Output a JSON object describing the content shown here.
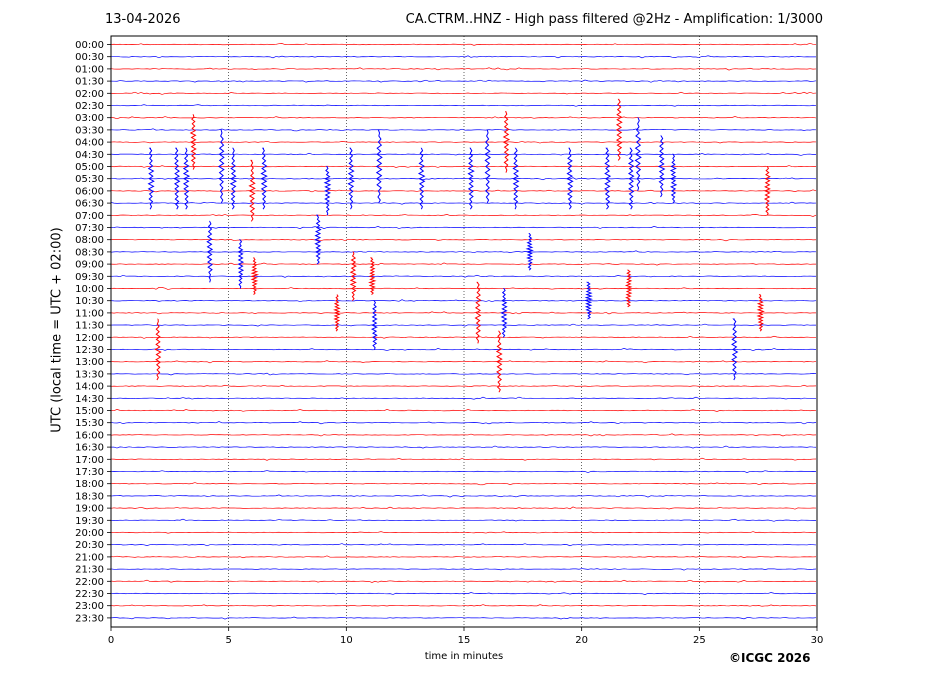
{
  "header": {
    "date": "13-04-2026",
    "title": "CA.CTRM..HNZ - High pass filtered @2Hz - Amplification: 1/3000"
  },
  "footer": {
    "copyright": "©ICGC 2026"
  },
  "chart_data": {
    "type": "line",
    "title": "CA.CTRM..HNZ - High pass filtered @2Hz - Amplification: 1/3000",
    "xlabel": "time in minutes",
    "ylabel": "UTC (local time = UTC + 02:00)",
    "xlim": [
      0,
      30
    ],
    "x_ticks": [
      0,
      5,
      10,
      15,
      20,
      25,
      30
    ],
    "grid": "vertical dotted at every 5 minutes",
    "trace_colors": [
      "#ff0000",
      "#0000ff"
    ],
    "rows": [
      "00:00",
      "00:30",
      "01:00",
      "01:30",
      "02:00",
      "02:30",
      "03:00",
      "03:30",
      "04:00",
      "04:30",
      "05:00",
      "05:30",
      "06:00",
      "06:30",
      "07:00",
      "07:30",
      "08:00",
      "08:30",
      "09:00",
      "09:30",
      "10:00",
      "10:30",
      "11:00",
      "11:30",
      "12:00",
      "12:30",
      "13:00",
      "13:30",
      "14:00",
      "14:30",
      "15:00",
      "15:30",
      "16:00",
      "16:30",
      "17:00",
      "17:30",
      "18:00",
      "18:30",
      "19:00",
      "19:30",
      "20:00",
      "20:30",
      "21:00",
      "21:30",
      "22:00",
      "22:30",
      "23:00",
      "23:30"
    ],
    "events": [
      {
        "row": "04:00",
        "minute": 3.5,
        "color": "red",
        "amplitude": 4.5
      },
      {
        "row": "05:00",
        "minute": 4.7,
        "color": "blue",
        "amplitude": 6
      },
      {
        "row": "05:30",
        "minute": 1.7,
        "color": "blue",
        "amplitude": 5
      },
      {
        "row": "05:30",
        "minute": 2.8,
        "color": "blue",
        "amplitude": 5
      },
      {
        "row": "05:30",
        "minute": 3.2,
        "color": "blue",
        "amplitude": 5
      },
      {
        "row": "05:30",
        "minute": 5.2,
        "color": "blue",
        "amplitude": 5
      },
      {
        "row": "05:30",
        "minute": 6.5,
        "color": "blue",
        "amplitude": 5
      },
      {
        "row": "06:00",
        "minute": 6.0,
        "color": "red",
        "amplitude": 5
      },
      {
        "row": "06:00",
        "minute": 9.2,
        "color": "blue",
        "amplitude": 4
      },
      {
        "row": "05:30",
        "minute": 10.2,
        "color": "blue",
        "amplitude": 5
      },
      {
        "row": "05:00",
        "minute": 11.4,
        "color": "blue",
        "amplitude": 6
      },
      {
        "row": "05:30",
        "minute": 13.2,
        "color": "blue",
        "amplitude": 5
      },
      {
        "row": "05:30",
        "minute": 15.3,
        "color": "blue",
        "amplitude": 5
      },
      {
        "row": "05:00",
        "minute": 16.0,
        "color": "blue",
        "amplitude": 6
      },
      {
        "row": "04:00",
        "minute": 16.8,
        "color": "red",
        "amplitude": 5
      },
      {
        "row": "05:30",
        "minute": 17.2,
        "color": "blue",
        "amplitude": 5
      },
      {
        "row": "05:30",
        "minute": 19.5,
        "color": "blue",
        "amplitude": 5
      },
      {
        "row": "05:30",
        "minute": 21.1,
        "color": "blue",
        "amplitude": 5
      },
      {
        "row": "03:30",
        "minute": 21.6,
        "color": "red",
        "amplitude": 5
      },
      {
        "row": "05:30",
        "minute": 22.1,
        "color": "blue",
        "amplitude": 5
      },
      {
        "row": "04:30",
        "minute": 22.4,
        "color": "blue",
        "amplitude": 6
      },
      {
        "row": "05:00",
        "minute": 23.4,
        "color": "blue",
        "amplitude": 5
      },
      {
        "row": "05:30",
        "minute": 23.9,
        "color": "blue",
        "amplitude": 4
      },
      {
        "row": "06:00",
        "minute": 27.9,
        "color": "red",
        "amplitude": 4
      },
      {
        "row": "08:30",
        "minute": 4.2,
        "color": "blue",
        "amplitude": 5
      },
      {
        "row": "09:00",
        "minute": 5.5,
        "color": "blue",
        "amplitude": 4
      },
      {
        "row": "09:30",
        "minute": 6.1,
        "color": "red",
        "amplitude": 3
      },
      {
        "row": "08:00",
        "minute": 8.8,
        "color": "blue",
        "amplitude": 4
      },
      {
        "row": "09:30",
        "minute": 10.3,
        "color": "red",
        "amplitude": 4
      },
      {
        "row": "09:30",
        "minute": 11.1,
        "color": "red",
        "amplitude": 3
      },
      {
        "row": "08:30",
        "minute": 17.8,
        "color": "blue",
        "amplitude": 3
      },
      {
        "row": "10:30",
        "minute": 20.3,
        "color": "blue",
        "amplitude": 3
      },
      {
        "row": "10:00",
        "minute": 22.0,
        "color": "red",
        "amplitude": 3
      },
      {
        "row": "11:00",
        "minute": 9.6,
        "color": "red",
        "amplitude": 3
      },
      {
        "row": "11:30",
        "minute": 11.2,
        "color": "blue",
        "amplitude": 4
      },
      {
        "row": "11:00",
        "minute": 15.6,
        "color": "red",
        "amplitude": 5
      },
      {
        "row": "11:00",
        "minute": 16.7,
        "color": "blue",
        "amplitude": 4
      },
      {
        "row": "11:00",
        "minute": 27.6,
        "color": "red",
        "amplitude": 3
      },
      {
        "row": "12:30",
        "minute": 2.0,
        "color": "red",
        "amplitude": 5
      },
      {
        "row": "12:30",
        "minute": 26.5,
        "color": "blue",
        "amplitude": 5
      },
      {
        "row": "13:00",
        "minute": 16.5,
        "color": "red",
        "amplitude": 5
      }
    ]
  }
}
